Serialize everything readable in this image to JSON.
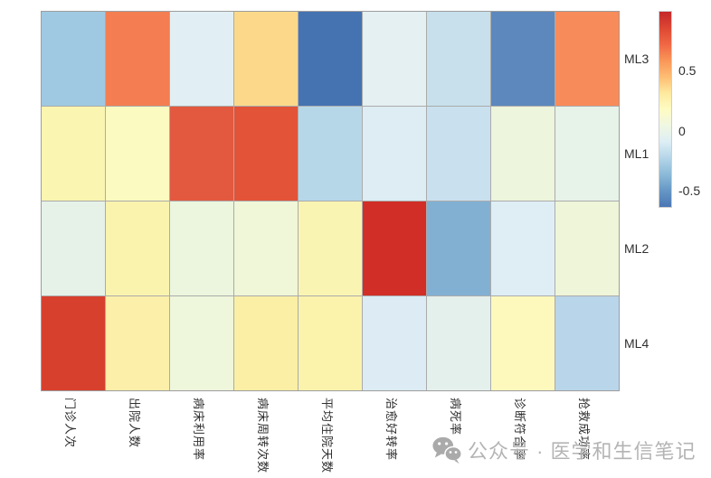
{
  "chart_data": {
    "type": "heatmap",
    "title": "",
    "rows": [
      "ML3",
      "ML1",
      "ML2",
      "ML4"
    ],
    "columns": [
      "门诊人次",
      "出院人数",
      "病床利用率",
      "病床周转次数",
      "平均住院天数",
      "治愈好转率",
      "病死率",
      "诊断符合率",
      "抢救成功率"
    ],
    "values": [
      [
        -0.3,
        0.75,
        -0.08,
        0.42,
        -0.62,
        -0.05,
        -0.18,
        -0.55,
        0.7
      ],
      [
        0.22,
        0.18,
        0.85,
        0.85,
        -0.25,
        -0.1,
        -0.18,
        0.04,
        0.0
      ],
      [
        0.0,
        0.23,
        0.05,
        0.08,
        0.21,
        0.97,
        -0.42,
        -0.09,
        0.06
      ],
      [
        0.92,
        0.25,
        0.05,
        0.27,
        0.24,
        -0.1,
        -0.03,
        0.18,
        -0.24
      ]
    ],
    "cell_colors": [
      [
        "#9fc9e2",
        "#f47e51",
        "#e1eff4",
        "#fcd98a",
        "#4573b2",
        "#e4f0f2",
        "#c7e0ec",
        "#5c88bd",
        "#f88b5a"
      ],
      [
        "#faf5b0",
        "#fbfac0",
        "#e2593f",
        "#e25338",
        "#b6d7e8",
        "#ddedf3",
        "#c9e0ef",
        "#edf5dc",
        "#e7f2e9"
      ],
      [
        "#e6f2e8",
        "#faf3ae",
        "#ecf5de",
        "#f0f6d8",
        "#faf4b3",
        "#d12e27",
        "#82b0d3",
        "#dfeef5",
        "#eef5d9"
      ],
      [
        "#d8402e",
        "#fbefa9",
        "#eef6dc",
        "#faefa4",
        "#fbf2ac",
        "#ddecf4",
        "#e4f0ec",
        "#fdf9bd",
        "#b9d5e9"
      ]
    ],
    "grid_line_color": "#ababab",
    "legend_position": "right",
    "colorbar": {
      "tick_labels": [
        "0.5",
        "0",
        "-0.5"
      ],
      "tick_values": [
        0.5,
        0,
        -0.5
      ],
      "domain_top": 1.0,
      "domain_bottom": -0.64,
      "gradient_top_to_bottom": [
        "#c4272a",
        "#dd4733",
        "#f06744",
        "#f99658",
        "#fdbd73",
        "#fde99e",
        "#fefbc3",
        "#f0f7e2",
        "#ddeef5",
        "#b4d5e8",
        "#8bbad8",
        "#6697c5",
        "#4b76b4"
      ]
    }
  },
  "watermark": {
    "icon": "wechat-icon",
    "text": "公众号 · 医学和生信笔记",
    "color": "#b4b4b4"
  }
}
